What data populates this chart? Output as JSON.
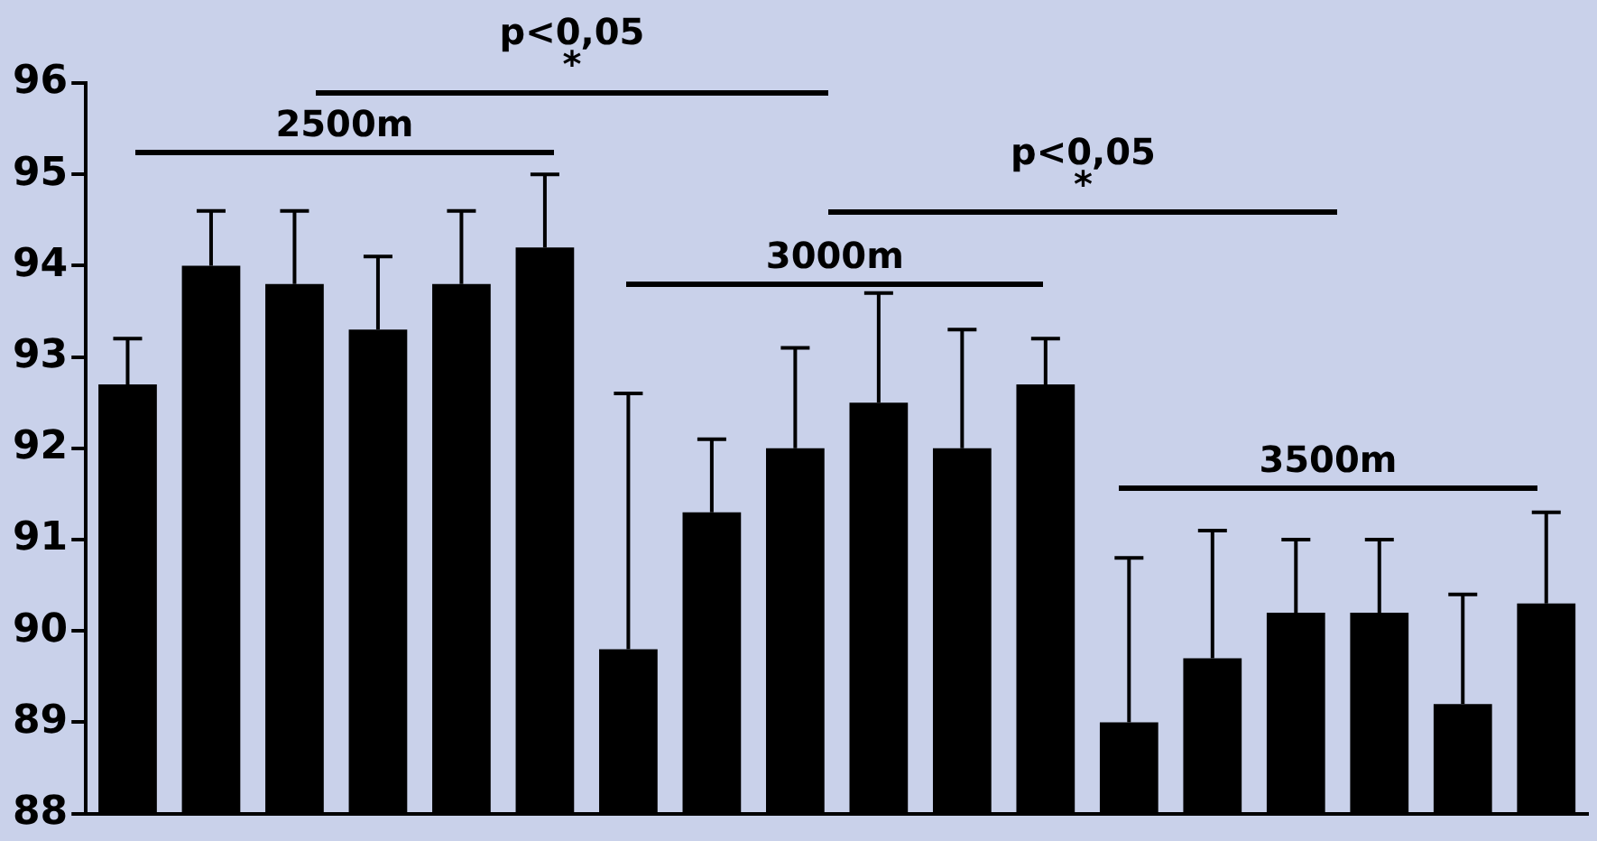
{
  "chart_data": {
    "type": "bar",
    "categories": [
      null,
      null,
      null,
      null,
      null,
      null,
      null,
      null,
      null,
      null,
      null,
      null,
      null,
      null,
      null,
      null,
      null,
      null
    ],
    "values": [
      92.7,
      94.0,
      93.8,
      93.3,
      93.8,
      94.2,
      89.8,
      91.3,
      92.0,
      92.5,
      92.0,
      92.7,
      89.0,
      89.7,
      90.2,
      90.2,
      89.2,
      90.3
    ],
    "errors": [
      [
        92.7,
        93.2
      ],
      [
        94.0,
        94.6
      ],
      [
        93.8,
        94.6
      ],
      [
        93.3,
        94.1
      ],
      [
        93.8,
        94.6
      ],
      [
        94.2,
        95.0
      ],
      [
        89.8,
        92.6
      ],
      [
        91.3,
        92.1
      ],
      [
        92.0,
        93.1
      ],
      [
        92.5,
        93.7
      ],
      [
        92.0,
        93.3
      ],
      [
        92.7,
        93.2
      ],
      [
        89.0,
        90.8
      ],
      [
        89.7,
        91.1
      ],
      [
        90.2,
        91.0
      ],
      [
        90.2,
        91.0
      ],
      [
        89.2,
        90.4
      ],
      [
        90.3,
        91.3
      ]
    ],
    "color": "#000000",
    "ylim": [
      88,
      96
    ],
    "yticks": [
      88,
      89,
      90,
      91,
      92,
      93,
      94,
      95,
      96
    ],
    "grid": false,
    "legend": false,
    "annotations": [
      "p<0,05\n*",
      "2500m",
      "p<0,05\n*",
      "3000m",
      "3500m"
    ]
  }
}
